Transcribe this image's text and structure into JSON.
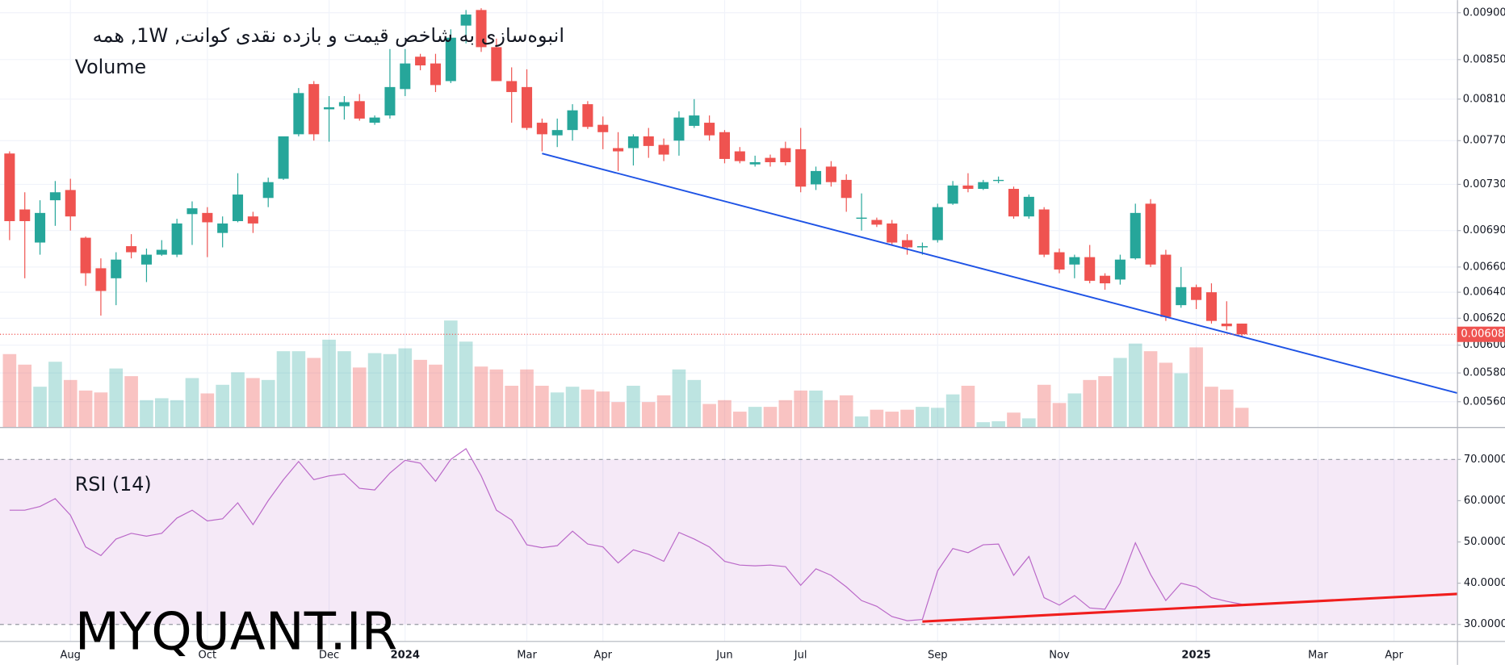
{
  "watermark": "MYQUANT.IR",
  "chart_data": [
    {
      "type": "candlestick",
      "title": "انبوه‌سازی به شاخص قیمت و بازده نقدی کوانت, 1W, همه",
      "up_color": "#26a69a",
      "down_color": "#ef5350",
      "log_scale": true,
      "grid": true,
      "xlim": [
        -0.63,
        95.14
      ],
      "ylim": [
        0.00543,
        0.00914
      ],
      "yticks": [
        {
          "value": 0.009,
          "label": "0.00900"
        },
        {
          "value": 0.0085,
          "label": "0.00850"
        },
        {
          "value": 0.0081,
          "label": "0.00810"
        },
        {
          "value": 0.0077,
          "label": "0.00770"
        },
        {
          "value": 0.0073,
          "label": "0.00730"
        },
        {
          "value": 0.0069,
          "label": "0.00690"
        },
        {
          "value": 0.0066,
          "label": "0.00660"
        },
        {
          "value": 0.0064,
          "label": "0.00640"
        },
        {
          "value": 0.0062,
          "label": "0.00620"
        },
        {
          "value": 0.006,
          "label": "0.00600"
        },
        {
          "value": 0.0058,
          "label": "0.00580"
        },
        {
          "value": 0.0056,
          "label": "0.00560"
        }
      ],
      "xticks": [
        {
          "value": 4,
          "label": "Aug"
        },
        {
          "value": 13,
          "label": "Oct"
        },
        {
          "value": 21,
          "label": "Dec"
        },
        {
          "value": 26,
          "label": "2024"
        },
        {
          "value": 34,
          "label": "Mar"
        },
        {
          "value": 39,
          "label": "Apr"
        },
        {
          "value": 47,
          "label": "Jun"
        },
        {
          "value": 52,
          "label": "Jul"
        },
        {
          "value": 61,
          "label": "Sep"
        },
        {
          "value": 69,
          "label": "Nov"
        },
        {
          "value": 78,
          "label": "2025"
        },
        {
          "value": 86,
          "label": "Mar"
        },
        {
          "value": 91,
          "label": "Apr"
        }
      ],
      "open": [
        0.00758,
        0.00708,
        0.0068,
        0.00716,
        0.00725,
        0.00684,
        0.00659,
        0.00651,
        0.00677,
        0.00662,
        0.0067,
        0.0067,
        0.00704,
        0.00705,
        0.00688,
        0.00698,
        0.00702,
        0.00718,
        0.00735,
        0.00776,
        0.00825,
        0.008,
        0.00803,
        0.00808,
        0.00787,
        0.00794,
        0.0082,
        0.00853,
        0.00846,
        0.00828,
        0.00886,
        0.00903,
        0.00863,
        0.00828,
        0.00822,
        0.00787,
        0.00775,
        0.0078,
        0.00805,
        0.00785,
        0.00763,
        0.00763,
        0.00774,
        0.00766,
        0.0077,
        0.00784,
        0.00787,
        0.00778,
        0.0076,
        0.00748,
        0.00754,
        0.00763,
        0.00762,
        0.0073,
        0.00746,
        0.00734,
        0.007,
        0.00699,
        0.00696,
        0.00682,
        0.00676,
        0.00682,
        0.00713,
        0.00729,
        0.00726,
        0.00733,
        0.00726,
        0.00702,
        0.00708,
        0.00672,
        0.00662,
        0.00668,
        0.00653,
        0.0065,
        0.00667,
        0.00713,
        0.0067,
        0.0063,
        0.00644,
        0.0064,
        0.00616,
        0.00616
      ],
      "high": [
        0.0076,
        0.00723,
        0.00716,
        0.00733,
        0.00735,
        0.00685,
        0.00667,
        0.00672,
        0.00687,
        0.00675,
        0.00682,
        0.007,
        0.00715,
        0.0071,
        0.00702,
        0.0074,
        0.00706,
        0.00736,
        0.00774,
        0.00821,
        0.00828,
        0.00813,
        0.00813,
        0.00815,
        0.00794,
        0.00861,
        0.00861,
        0.00856,
        0.00856,
        0.00882,
        0.00903,
        0.00905,
        0.00872,
        0.00842,
        0.0084,
        0.00791,
        0.00791,
        0.00805,
        0.00808,
        0.00793,
        0.00778,
        0.00776,
        0.00782,
        0.00772,
        0.00798,
        0.0081,
        0.00794,
        0.0078,
        0.00764,
        0.00756,
        0.00757,
        0.00769,
        0.00782,
        0.00746,
        0.00751,
        0.00739,
        0.00722,
        0.00701,
        0.00699,
        0.00687,
        0.0068,
        0.00713,
        0.00733,
        0.0074,
        0.00734,
        0.00737,
        0.00728,
        0.00721,
        0.0071,
        0.00675,
        0.0067,
        0.00678,
        0.00655,
        0.0067,
        0.00713,
        0.00717,
        0.00674,
        0.0066,
        0.00646,
        0.00647,
        0.00633,
        0.00616
      ],
      "low": [
        0.00682,
        0.00651,
        0.0067,
        0.00694,
        0.0069,
        0.00645,
        0.00622,
        0.0063,
        0.00667,
        0.00648,
        0.00669,
        0.00668,
        0.00678,
        0.00668,
        0.00676,
        0.00697,
        0.00688,
        0.0071,
        0.00734,
        0.00774,
        0.0077,
        0.00769,
        0.0079,
        0.00789,
        0.00785,
        0.00791,
        0.00813,
        0.00839,
        0.00817,
        0.00826,
        0.00867,
        0.00858,
        0.00828,
        0.00787,
        0.0078,
        0.0076,
        0.00764,
        0.0077,
        0.00781,
        0.00762,
        0.00742,
        0.00747,
        0.00754,
        0.00751,
        0.00756,
        0.00782,
        0.0077,
        0.00749,
        0.00749,
        0.00746,
        0.00746,
        0.00747,
        0.00723,
        0.00725,
        0.00728,
        0.00706,
        0.0069,
        0.00693,
        0.00678,
        0.0067,
        0.0067,
        0.0068,
        0.00712,
        0.00723,
        0.00725,
        0.00731,
        0.007,
        0.007,
        0.00668,
        0.00655,
        0.00651,
        0.00647,
        0.00642,
        0.00646,
        0.00666,
        0.0066,
        0.00618,
        0.00628,
        0.00627,
        0.00616,
        0.00611,
        0.00606
      ],
      "close": [
        0.00698,
        0.00698,
        0.00705,
        0.00723,
        0.00702,
        0.00655,
        0.00641,
        0.00666,
        0.00672,
        0.0067,
        0.00674,
        0.00696,
        0.00709,
        0.00697,
        0.00696,
        0.00721,
        0.00696,
        0.00732,
        0.00774,
        0.00816,
        0.00776,
        0.00802,
        0.00807,
        0.00791,
        0.00792,
        0.00822,
        0.00846,
        0.00844,
        0.00824,
        0.00873,
        0.00898,
        0.00863,
        0.00828,
        0.00817,
        0.00782,
        0.00776,
        0.0078,
        0.00799,
        0.00783,
        0.00778,
        0.0076,
        0.00774,
        0.00765,
        0.00757,
        0.00792,
        0.00794,
        0.00775,
        0.00753,
        0.00751,
        0.0075,
        0.0075,
        0.0075,
        0.00728,
        0.00742,
        0.00732,
        0.00718,
        0.00701,
        0.00695,
        0.0068,
        0.00676,
        0.00677,
        0.0071,
        0.00729,
        0.00726,
        0.00732,
        0.00734,
        0.00702,
        0.00719,
        0.0067,
        0.00658,
        0.00668,
        0.00649,
        0.00647,
        0.00666,
        0.00705,
        0.00662,
        0.00621,
        0.00644,
        0.00634,
        0.00618,
        0.00614,
        0.00608
      ],
      "last_price": {
        "value": 0.00608,
        "label": "0.00608"
      },
      "trendlines": [
        {
          "x": [
            35,
            95.14
          ],
          "y": [
            0.00758,
            0.00566
          ],
          "color": "#1e53e5"
        }
      ]
    },
    {
      "type": "bar",
      "title": "Volume",
      "up_color": "rgba(38,166,154,0.3)",
      "down_color": "rgba(239,83,80,0.35)",
      "xlim": [
        -0.63,
        95.14
      ],
      "values": [
        76,
        65,
        42,
        68,
        49,
        38,
        36,
        61,
        53,
        28,
        30,
        28,
        51,
        35,
        44,
        57,
        51,
        49,
        79,
        79,
        72,
        91,
        79,
        62,
        77,
        76,
        82,
        70,
        65,
        111,
        89,
        63,
        60,
        43,
        60,
        43,
        36,
        42,
        39,
        37,
        26,
        43,
        26,
        33,
        60,
        49,
        24,
        28,
        16,
        21,
        21,
        28,
        38,
        38,
        28,
        33,
        11,
        18,
        16,
        18,
        21,
        20,
        34,
        43,
        5,
        6,
        15,
        9,
        44,
        25,
        35,
        49,
        53,
        72,
        87,
        79,
        67,
        56,
        83,
        42,
        39,
        20
      ]
    },
    {
      "type": "line",
      "title": "RSI (14)",
      "color": "#ba68c8",
      "xlim": [
        -0.63,
        95.14
      ],
      "ylim": [
        26.0,
        77.4
      ],
      "yticks": [
        {
          "value": 70,
          "label": "70.0000"
        },
        {
          "value": 60,
          "label": "60.0000"
        },
        {
          "value": 50,
          "label": "50.0000"
        },
        {
          "value": 40,
          "label": "40.0000"
        },
        {
          "value": 30,
          "label": "30.0000"
        }
      ],
      "band": [
        30,
        70
      ],
      "band_color": "rgba(156,39,176,0.1)",
      "values": [
        57.7,
        57.7,
        58.6,
        60.5,
        56.5,
        48.8,
        46.7,
        50.7,
        52.1,
        51.4,
        52.1,
        55.8,
        57.7,
        55.1,
        55.6,
        59.5,
        54.2,
        60.0,
        65.1,
        69.5,
        65.1,
        66.0,
        66.5,
        63.0,
        62.6,
        66.7,
        69.8,
        69.1,
        64.7,
        70.0,
        72.6,
        66.0,
        57.7,
        55.3,
        49.3,
        48.6,
        49.1,
        52.6,
        49.5,
        48.8,
        44.9,
        48.1,
        47.0,
        45.3,
        52.3,
        50.7,
        48.8,
        45.3,
        44.4,
        44.2,
        44.4,
        44.0,
        39.5,
        43.5,
        41.9,
        39.1,
        35.8,
        34.4,
        31.9,
        30.9,
        31.2,
        43.0,
        48.4,
        47.4,
        49.3,
        49.5,
        41.9,
        46.5,
        36.5,
        34.7,
        37.0,
        34.0,
        33.7,
        40.0,
        49.8,
        42.1,
        35.8,
        40.0,
        39.1,
        36.5,
        35.6,
        34.9
      ],
      "trendlines": [
        {
          "x": [
            60,
            95.14
          ],
          "y": [
            30.7,
            37.4
          ],
          "color": "#f01d1d"
        }
      ]
    }
  ]
}
